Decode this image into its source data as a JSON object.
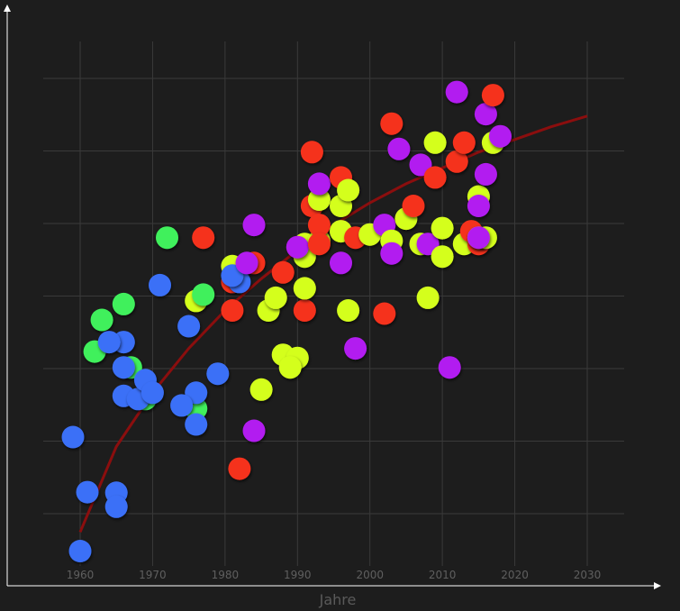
{
  "chart_data": {
    "type": "scatter",
    "title": "",
    "xlabel": "Jahre",
    "ylabel": "",
    "xlim": [
      1955,
      2035
    ],
    "ylim": [
      0,
      8
    ],
    "x_ticks": [
      "1960",
      "1970",
      "1980",
      "1990",
      "2000",
      "2010",
      "2020",
      "2030"
    ],
    "grid": true,
    "legend": "none",
    "colors": {
      "background": "#1d1d1d",
      "grid": "#3a3a3a",
      "axis": "#ffffff",
      "trend": "#8b0e0e",
      "blue": "#3a6ff7",
      "green": "#3ff05c",
      "yellow": "#d4ff1f",
      "red": "#f5301e",
      "purple": "#b21ef0"
    },
    "trend": {
      "color": "#8b0e0e",
      "points": [
        [
          1960,
          0.35
        ],
        [
          1965,
          1.7
        ],
        [
          1970,
          2.55
        ],
        [
          1975,
          3.25
        ],
        [
          1980,
          3.85
        ],
        [
          1985,
          4.35
        ],
        [
          1990,
          4.8
        ],
        [
          1995,
          5.2
        ],
        [
          2000,
          5.55
        ],
        [
          2005,
          5.85
        ],
        [
          2010,
          6.1
        ],
        [
          2015,
          6.35
        ],
        [
          2020,
          6.55
        ],
        [
          2025,
          6.75
        ],
        [
          2030,
          6.92
        ]
      ]
    },
    "points": [
      {
        "x": 1960,
        "y": 0.05,
        "c": "blue"
      },
      {
        "x": 1961,
        "y": 0.98,
        "c": "blue"
      },
      {
        "x": 1959,
        "y": 1.85,
        "c": "blue"
      },
      {
        "x": 1965,
        "y": 0.97,
        "c": "blue"
      },
      {
        "x": 1965,
        "y": 0.75,
        "c": "blue"
      },
      {
        "x": 1962,
        "y": 3.2,
        "c": "green"
      },
      {
        "x": 1963,
        "y": 3.7,
        "c": "green"
      },
      {
        "x": 1966,
        "y": 3.95,
        "c": "green"
      },
      {
        "x": 1967,
        "y": 2.95,
        "c": "green"
      },
      {
        "x": 1969,
        "y": 2.45,
        "c": "green"
      },
      {
        "x": 1966,
        "y": 3.35,
        "c": "blue"
      },
      {
        "x": 1964,
        "y": 3.35,
        "c": "blue"
      },
      {
        "x": 1966,
        "y": 2.95,
        "c": "blue"
      },
      {
        "x": 1966,
        "y": 2.5,
        "c": "blue"
      },
      {
        "x": 1968,
        "y": 2.45,
        "c": "blue"
      },
      {
        "x": 1969,
        "y": 2.75,
        "c": "blue"
      },
      {
        "x": 1970,
        "y": 2.55,
        "c": "blue"
      },
      {
        "x": 1971,
        "y": 4.25,
        "c": "blue"
      },
      {
        "x": 1972,
        "y": 5.0,
        "c": "green"
      },
      {
        "x": 1976,
        "y": 2.3,
        "c": "green"
      },
      {
        "x": 1975,
        "y": 3.6,
        "c": "blue"
      },
      {
        "x": 1976,
        "y": 2.55,
        "c": "blue"
      },
      {
        "x": 1974,
        "y": 2.35,
        "c": "blue"
      },
      {
        "x": 1976,
        "y": 2.05,
        "c": "blue"
      },
      {
        "x": 1979,
        "y": 2.85,
        "c": "blue"
      },
      {
        "x": 1977,
        "y": 5.0,
        "c": "red"
      },
      {
        "x": 1976,
        "y": 4.0,
        "c": "yellow"
      },
      {
        "x": 1977,
        "y": 4.1,
        "c": "green"
      },
      {
        "x": 1981,
        "y": 4.55,
        "c": "yellow"
      },
      {
        "x": 1981,
        "y": 4.3,
        "c": "red"
      },
      {
        "x": 1982,
        "y": 4.3,
        "c": "blue"
      },
      {
        "x": 1981,
        "y": 4.4,
        "c": "blue"
      },
      {
        "x": 1981,
        "y": 3.85,
        "c": "red"
      },
      {
        "x": 1984,
        "y": 4.6,
        "c": "red"
      },
      {
        "x": 1983,
        "y": 4.6,
        "c": "purple"
      },
      {
        "x": 1984,
        "y": 5.2,
        "c": "purple"
      },
      {
        "x": 1982,
        "y": 1.35,
        "c": "red"
      },
      {
        "x": 1984,
        "y": 1.95,
        "c": "purple"
      },
      {
        "x": 1985,
        "y": 2.6,
        "c": "yellow"
      },
      {
        "x": 1986,
        "y": 3.85,
        "c": "yellow"
      },
      {
        "x": 1987,
        "y": 4.05,
        "c": "yellow"
      },
      {
        "x": 1988,
        "y": 4.45,
        "c": "red"
      },
      {
        "x": 1988,
        "y": 3.15,
        "c": "yellow"
      },
      {
        "x": 1990,
        "y": 3.1,
        "c": "yellow"
      },
      {
        "x": 1989,
        "y": 2.95,
        "c": "yellow"
      },
      {
        "x": 1991,
        "y": 3.85,
        "c": "red"
      },
      {
        "x": 1991,
        "y": 4.2,
        "c": "yellow"
      },
      {
        "x": 1991,
        "y": 4.9,
        "c": "yellow"
      },
      {
        "x": 1991,
        "y": 4.7,
        "c": "yellow"
      },
      {
        "x": 1990,
        "y": 4.85,
        "c": "purple"
      },
      {
        "x": 1992,
        "y": 6.35,
        "c": "red"
      },
      {
        "x": 1992,
        "y": 5.5,
        "c": "red"
      },
      {
        "x": 1993,
        "y": 5.6,
        "c": "yellow"
      },
      {
        "x": 1993,
        "y": 5.85,
        "c": "purple"
      },
      {
        "x": 1993,
        "y": 4.95,
        "c": "yellow"
      },
      {
        "x": 1993,
        "y": 5.2,
        "c": "red"
      },
      {
        "x": 1993,
        "y": 4.9,
        "c": "red"
      },
      {
        "x": 1996,
        "y": 5.95,
        "c": "red"
      },
      {
        "x": 1996,
        "y": 5.5,
        "c": "yellow"
      },
      {
        "x": 1997,
        "y": 5.75,
        "c": "yellow"
      },
      {
        "x": 1996,
        "y": 5.1,
        "c": "yellow"
      },
      {
        "x": 1996,
        "y": 4.6,
        "c": "purple"
      },
      {
        "x": 1997,
        "y": 3.85,
        "c": "yellow"
      },
      {
        "x": 1998,
        "y": 5.0,
        "c": "red"
      },
      {
        "x": 1998,
        "y": 3.25,
        "c": "purple"
      },
      {
        "x": 2000,
        "y": 5.05,
        "c": "yellow"
      },
      {
        "x": 2002,
        "y": 5.2,
        "c": "purple"
      },
      {
        "x": 2003,
        "y": 4.95,
        "c": "yellow"
      },
      {
        "x": 2003,
        "y": 4.75,
        "c": "purple"
      },
      {
        "x": 2002,
        "y": 3.8,
        "c": "red"
      },
      {
        "x": 2003,
        "y": 6.8,
        "c": "red"
      },
      {
        "x": 2004,
        "y": 6.4,
        "c": "purple"
      },
      {
        "x": 2005,
        "y": 5.3,
        "c": "yellow"
      },
      {
        "x": 2006,
        "y": 5.5,
        "c": "red"
      },
      {
        "x": 2007,
        "y": 6.15,
        "c": "purple"
      },
      {
        "x": 2007,
        "y": 4.9,
        "c": "yellow"
      },
      {
        "x": 2008,
        "y": 4.9,
        "c": "purple"
      },
      {
        "x": 2008,
        "y": 4.05,
        "c": "yellow"
      },
      {
        "x": 2009,
        "y": 6.5,
        "c": "yellow"
      },
      {
        "x": 2009,
        "y": 5.95,
        "c": "red"
      },
      {
        "x": 2010,
        "y": 5.15,
        "c": "yellow"
      },
      {
        "x": 2010,
        "y": 4.7,
        "c": "yellow"
      },
      {
        "x": 2011,
        "y": 2.95,
        "c": "purple"
      },
      {
        "x": 2012,
        "y": 7.3,
        "c": "purple"
      },
      {
        "x": 2012,
        "y": 6.2,
        "c": "red"
      },
      {
        "x": 2013,
        "y": 6.5,
        "c": "red"
      },
      {
        "x": 2013,
        "y": 4.9,
        "c": "yellow"
      },
      {
        "x": 2014,
        "y": 5.1,
        "c": "red"
      },
      {
        "x": 2015,
        "y": 4.9,
        "c": "red"
      },
      {
        "x": 2015,
        "y": 5.0,
        "c": "yellow"
      },
      {
        "x": 2016,
        "y": 5.0,
        "c": "yellow"
      },
      {
        "x": 2015,
        "y": 5.0,
        "c": "purple"
      },
      {
        "x": 2015,
        "y": 5.65,
        "c": "yellow"
      },
      {
        "x": 2015,
        "y": 5.5,
        "c": "purple"
      },
      {
        "x": 2016,
        "y": 6.0,
        "c": "purple"
      },
      {
        "x": 2016,
        "y": 6.95,
        "c": "purple"
      },
      {
        "x": 2017,
        "y": 7.25,
        "c": "red"
      },
      {
        "x": 2017,
        "y": 6.5,
        "c": "yellow"
      },
      {
        "x": 2018,
        "y": 6.6,
        "c": "purple"
      }
    ]
  }
}
